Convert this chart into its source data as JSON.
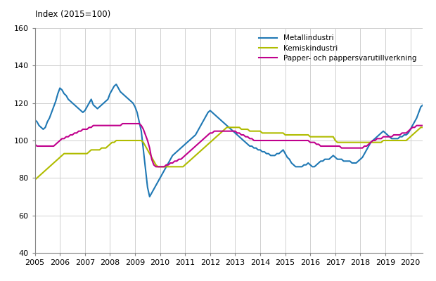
{
  "title": "Index (2015=100)",
  "xlim": [
    2005.0,
    2020.5
  ],
  "ylim": [
    40,
    160
  ],
  "yticks": [
    40,
    60,
    80,
    100,
    120,
    140,
    160
  ],
  "legend": [
    "Metallindustri",
    "Kemiskindustri",
    "Papper- och pappersvarutillverkning"
  ],
  "colors": [
    "#1f78b4",
    "#b0bc00",
    "#c0008c"
  ],
  "metallindustri": [
    111,
    110,
    108,
    107,
    106,
    107,
    110,
    112,
    115,
    118,
    121,
    125,
    128,
    127,
    125,
    124,
    122,
    121,
    120,
    119,
    118,
    117,
    116,
    115,
    116,
    118,
    120,
    122,
    119,
    118,
    117,
    118,
    119,
    120,
    121,
    122,
    125,
    127,
    129,
    130,
    128,
    126,
    125,
    124,
    123,
    122,
    121,
    120,
    118,
    115,
    110,
    105,
    95,
    85,
    75,
    70,
    72,
    74,
    76,
    78,
    80,
    82,
    84,
    86,
    88,
    90,
    92,
    93,
    94,
    95,
    96,
    97,
    98,
    99,
    100,
    101,
    102,
    103,
    105,
    107,
    109,
    111,
    113,
    115,
    116,
    115,
    114,
    113,
    112,
    111,
    110,
    109,
    108,
    107,
    106,
    105,
    104,
    103,
    102,
    101,
    100,
    99,
    98,
    97,
    97,
    96,
    96,
    95,
    95,
    94,
    94,
    93,
    93,
    92,
    92,
    92,
    93,
    93,
    94,
    95,
    93,
    91,
    90,
    88,
    87,
    86,
    86,
    86,
    86,
    87,
    87,
    88,
    87,
    86,
    86,
    87,
    88,
    89,
    89,
    90,
    90,
    90,
    91,
    92,
    91,
    90,
    90,
    90,
    89,
    89,
    89,
    89,
    88,
    88,
    88,
    89,
    90,
    91,
    93,
    95,
    97,
    99,
    100,
    101,
    102,
    103,
    104,
    105,
    104,
    103,
    102,
    101,
    101,
    101,
    101,
    102,
    102,
    103,
    103,
    104,
    106,
    108,
    110,
    112,
    115,
    118,
    119,
    118,
    117,
    116,
    115,
    114,
    113,
    112,
    111,
    110,
    109,
    108,
    108,
    108
  ],
  "kemiskindustri": [
    79,
    80,
    81,
    82,
    83,
    84,
    85,
    86,
    87,
    88,
    89,
    90,
    91,
    92,
    93,
    93,
    93,
    93,
    93,
    93,
    93,
    93,
    93,
    93,
    93,
    93,
    94,
    95,
    95,
    95,
    95,
    95,
    96,
    96,
    96,
    97,
    98,
    99,
    99,
    100,
    100,
    100,
    100,
    100,
    100,
    100,
    100,
    100,
    100,
    100,
    100,
    100,
    99,
    97,
    95,
    93,
    91,
    89,
    87,
    86,
    86,
    86,
    86,
    86,
    86,
    86,
    86,
    86,
    86,
    86,
    86,
    86,
    87,
    88,
    89,
    90,
    91,
    92,
    93,
    94,
    95,
    96,
    97,
    98,
    99,
    100,
    101,
    102,
    103,
    104,
    105,
    106,
    107,
    107,
    107,
    107,
    107,
    107,
    107,
    106,
    106,
    106,
    106,
    105,
    105,
    105,
    105,
    105,
    105,
    104,
    104,
    104,
    104,
    104,
    104,
    104,
    104,
    104,
    104,
    104,
    103,
    103,
    103,
    103,
    103,
    103,
    103,
    103,
    103,
    103,
    103,
    103,
    102,
    102,
    102,
    102,
    102,
    102,
    102,
    102,
    102,
    102,
    102,
    102,
    100,
    99,
    99,
    99,
    99,
    99,
    99,
    99,
    99,
    99,
    99,
    99,
    99,
    99,
    99,
    99,
    99,
    99,
    99,
    99,
    99,
    99,
    99,
    100,
    100,
    100,
    100,
    100,
    100,
    100,
    100,
    100,
    100,
    100,
    100,
    101,
    102,
    103,
    104,
    105,
    106,
    107,
    107,
    108,
    108,
    108,
    109,
    109,
    110,
    110,
    110,
    110,
    110,
    110,
    110,
    110
  ],
  "papper": [
    98,
    97,
    97,
    97,
    97,
    97,
    97,
    97,
    97,
    97,
    98,
    99,
    100,
    101,
    101,
    102,
    102,
    103,
    103,
    104,
    104,
    105,
    105,
    106,
    106,
    106,
    107,
    107,
    108,
    108,
    108,
    108,
    108,
    108,
    108,
    108,
    108,
    108,
    108,
    108,
    108,
    108,
    109,
    109,
    109,
    109,
    109,
    109,
    109,
    109,
    109,
    108,
    106,
    103,
    100,
    96,
    90,
    87,
    86,
    86,
    86,
    86,
    86,
    87,
    87,
    88,
    88,
    89,
    89,
    90,
    90,
    91,
    92,
    93,
    94,
    95,
    96,
    97,
    98,
    99,
    100,
    101,
    102,
    103,
    104,
    104,
    105,
    105,
    105,
    105,
    105,
    105,
    105,
    105,
    105,
    105,
    105,
    104,
    104,
    103,
    103,
    102,
    102,
    101,
    101,
    100,
    100,
    100,
    100,
    100,
    100,
    100,
    100,
    100,
    100,
    100,
    100,
    100,
    100,
    100,
    100,
    100,
    100,
    100,
    100,
    100,
    100,
    100,
    100,
    100,
    100,
    100,
    99,
    99,
    99,
    98,
    98,
    97,
    97,
    97,
    97,
    97,
    97,
    97,
    97,
    97,
    97,
    96,
    96,
    96,
    96,
    96,
    96,
    96,
    96,
    96,
    96,
    96,
    97,
    97,
    98,
    99,
    100,
    100,
    101,
    101,
    101,
    102,
    102,
    102,
    102,
    102,
    103,
    103,
    103,
    103,
    104,
    104,
    104,
    105,
    106,
    107,
    107,
    108,
    108,
    108,
    108,
    107,
    106,
    105,
    104,
    103,
    101,
    100,
    99,
    99,
    99,
    99,
    99,
    99
  ],
  "line_width": 1.5
}
